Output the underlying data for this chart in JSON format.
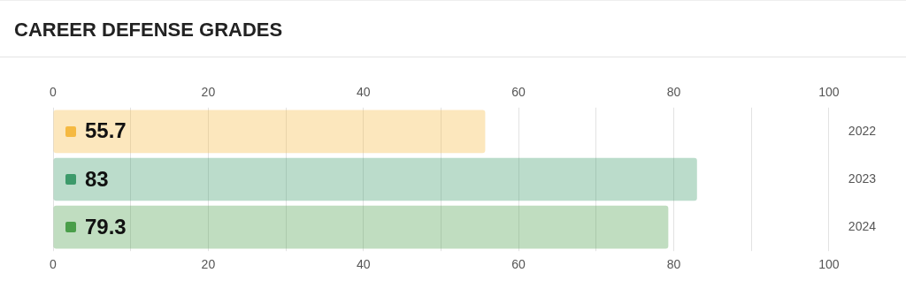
{
  "chart_data": {
    "type": "bar",
    "title": "CAREER DEFENSE GRADES",
    "orientation": "horizontal",
    "categories": [
      "2022",
      "2023",
      "2024"
    ],
    "values": [
      55.7,
      83,
      79.3
    ],
    "colors": [
      "#f5b941",
      "#3d9a6b",
      "#4a9e4a"
    ],
    "xlim": [
      0,
      100
    ],
    "x2lim": [
      0,
      100
    ],
    "xticks": [
      0,
      {
        "value": 10,
        "label": null
      },
      20,
      {
        "value": 30,
        "label": null
      },
      40,
      {
        "value": 50,
        "label": null
      },
      60,
      {
        "value": 70,
        "label": null
      },
      80,
      {
        "value": 90,
        "label": null
      },
      100
    ],
    "x2ticks": [
      0,
      {
        "value": 10,
        "label": null
      },
      20,
      {
        "value": 30,
        "label": null
      },
      40,
      {
        "value": 50,
        "label": null
      },
      60,
      {
        "value": 70,
        "label": null
      },
      80,
      {
        "value": 90,
        "label": null
      },
      100
    ],
    "grid": "x",
    "data_labels": true,
    "legend": false
  }
}
